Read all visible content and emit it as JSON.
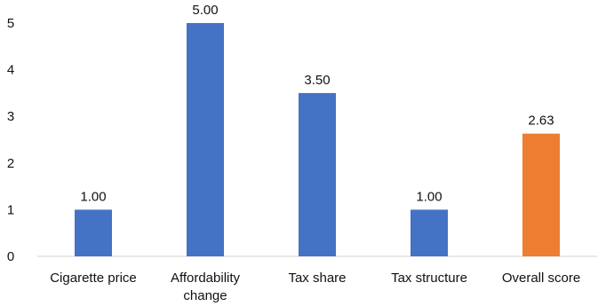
{
  "chart_data": {
    "type": "bar",
    "title": "",
    "xlabel": "",
    "ylabel": "",
    "ylim": [
      0,
      5
    ],
    "yticks": [
      "0",
      "1",
      "2",
      "3",
      "4",
      "5"
    ],
    "categories": [
      "Cigarette price",
      "Affordability change",
      "Tax share",
      "Tax structure",
      "Overall score"
    ],
    "category_lines": [
      [
        "Cigarette price"
      ],
      [
        "Affordability",
        "change"
      ],
      [
        "Tax share"
      ],
      [
        "Tax structure"
      ],
      [
        "Overall score"
      ]
    ],
    "values": [
      1.0,
      5.0,
      3.5,
      1.0,
      2.63
    ],
    "data_labels": [
      "1.00",
      "5.00",
      "3.50",
      "1.00",
      "2.63"
    ],
    "colors": [
      "#4472C4",
      "#4472C4",
      "#4472C4",
      "#4472C4",
      "#ED7D31"
    ],
    "grid": false,
    "legend": "none"
  }
}
